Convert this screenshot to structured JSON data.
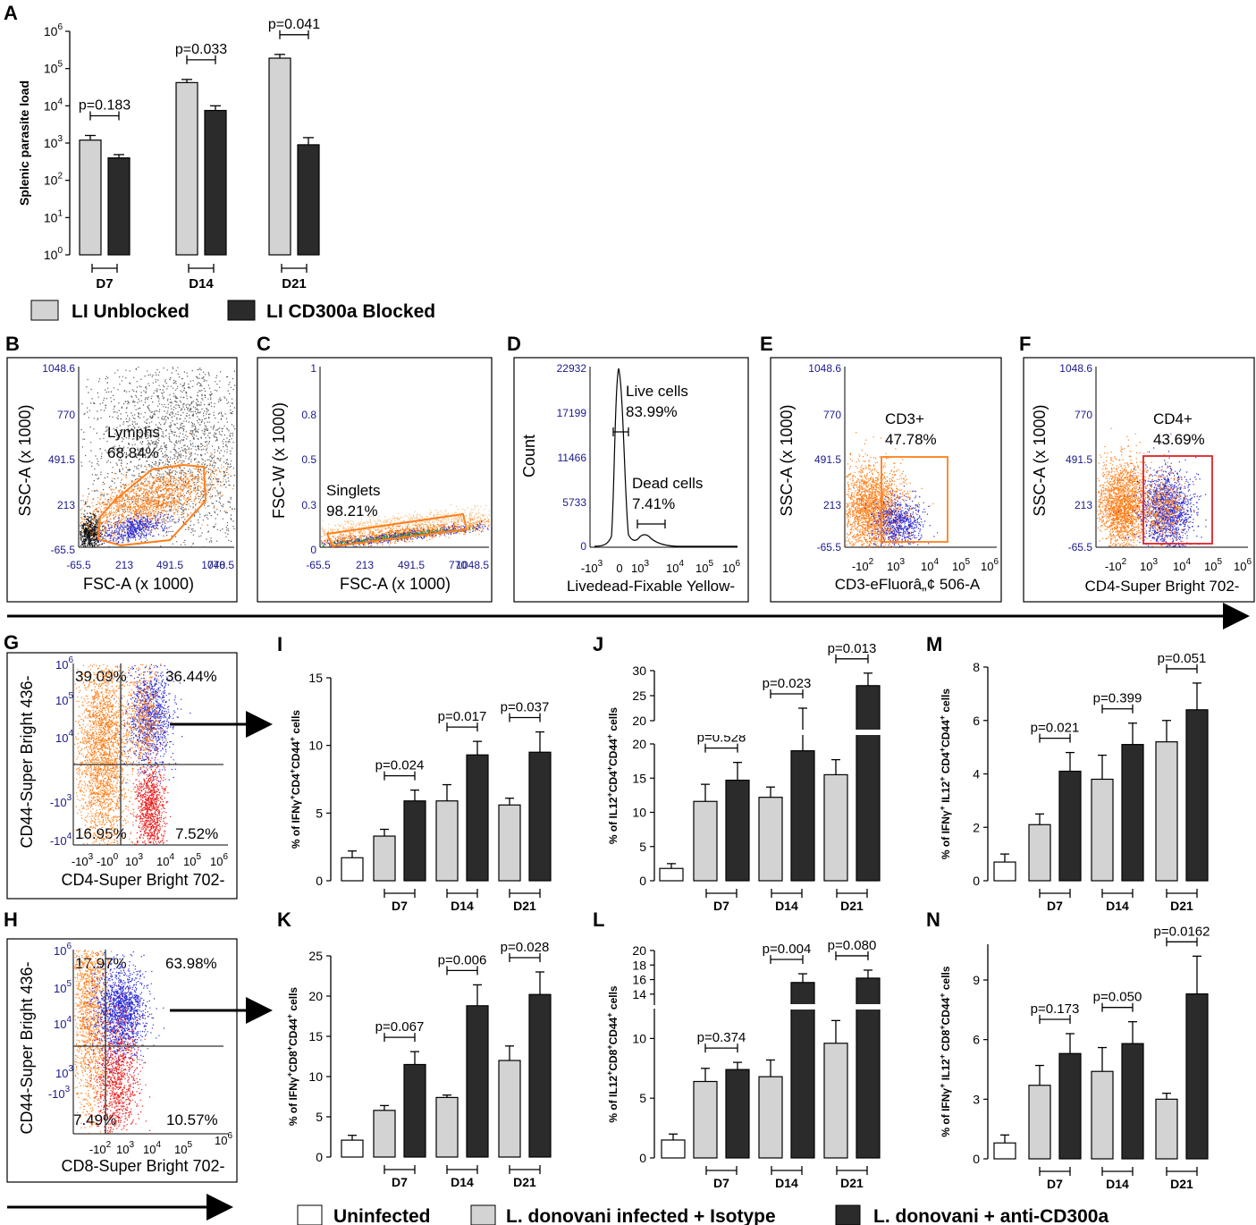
{
  "colors": {
    "unblocked": "#d3d3d3",
    "blocked": "#2b2b2b",
    "uninfected": "#ffffff",
    "flow_orange": "#ff7f1a",
    "flow_blue": "#2a2ad8",
    "flow_red": "#ee1c1c",
    "axis_blue": "#1a1a8c",
    "gate_red": "#e0202a"
  },
  "panel_letters": [
    "A",
    "B",
    "C",
    "D",
    "E",
    "F",
    "G",
    "H",
    "I",
    "J",
    "K",
    "L",
    "M",
    "N"
  ],
  "legend_top": {
    "unblocked": "LI Unblocked",
    "blocked": "LI CD300a Blocked"
  },
  "legend_bottom": {
    "uninfected": "Uninfected",
    "isotype": "L. donovani infected + Isotype",
    "anti": "L. donovani + anti-CD300a"
  },
  "flow_panels": {
    "B": {
      "xlabel": "FSC-A (x 1000)",
      "ylabel": "SSC-A (x 1000)",
      "xticks": [
        "-65.5",
        "213",
        "491.5",
        "770",
        "1048.5"
      ],
      "yticks": [
        "1048.6",
        "770",
        "491.5",
        "213",
        "-65.5"
      ],
      "gate_name": "Lymphs",
      "gate_pct": "68.84%"
    },
    "C": {
      "xlabel": "FSC-A (x 1000)",
      "ylabel": "FSC-W (x 1000)",
      "xticks": [
        "-65.5",
        "213",
        "491.5",
        "770",
        "1048.5"
      ],
      "yticks": [
        "1",
        "0.8",
        "0.5",
        "0.3",
        "0"
      ],
      "gate_name": "Singlets",
      "gate_pct": "98.21%"
    },
    "D": {
      "xlabel": "Livedead-Fixable Yellow-",
      "ylabel": "Count",
      "yticks": [
        "22932",
        "17199",
        "11466",
        "5733",
        "0"
      ],
      "live_name": "Live cells",
      "live_pct": "83.99%",
      "dead_name": "Dead cells",
      "dead_pct": "7.41%"
    },
    "E": {
      "xlabel": "CD3-eFluorâ„¢ 506-A",
      "ylabel": "SSC-A (x 1000)",
      "yticks": [
        "1048.6",
        "770",
        "491.5",
        "213",
        "-65.5"
      ],
      "gate_name": "CD3+",
      "gate_pct": "47.78%"
    },
    "F": {
      "xlabel": "CD4-Super Bright 702-",
      "ylabel": "SSC-A (x 1000)",
      "yticks": [
        "1048.6",
        "770",
        "491.5",
        "213",
        "-65.5"
      ],
      "gate_name": "CD4+",
      "gate_pct": "43.69%"
    },
    "G": {
      "xlabel": "CD4-Super Bright 702-",
      "ylabel": "CD44-Super Bright 436-",
      "q_ul": "39.09%",
      "q_ur": "36.44%",
      "q_ll": "16.95%",
      "q_lr": "7.52%"
    },
    "H": {
      "xlabel": "CD8-Super Bright 702-",
      "ylabel": "CD44-Super Bright 436-",
      "q_ul": "17.97%",
      "q_ur": "63.98%",
      "q_ll": "7.49%",
      "q_lr": "10.57%"
    }
  },
  "chart_data": [
    {
      "panel": "A",
      "type": "bar",
      "log_scale": true,
      "ylim": [
        1,
        1000000
      ],
      "ylabel": "Splenic parasite load",
      "yticks": [
        "10",
        "10",
        "10",
        "10",
        "10",
        "10",
        "10"
      ],
      "ytick_exps": [
        "0",
        "1",
        "2",
        "3",
        "4",
        "5",
        "6"
      ],
      "groups": [
        "D7",
        "D14",
        "D21"
      ],
      "series": [
        {
          "name": "LI Unblocked",
          "values": [
            1200,
            42000,
            190000
          ],
          "errors": [
            400,
            9000,
            50000
          ]
        },
        {
          "name": "LI CD300a Blocked",
          "values": [
            400,
            7500,
            900
          ],
          "errors": [
            90,
            2500,
            500
          ]
        }
      ],
      "pvalues": [
        "p=0.183",
        "p=0.033",
        "p=0.041"
      ]
    },
    {
      "panel": "I",
      "type": "bar",
      "ylim": [
        0,
        15
      ],
      "yticks": [
        "0",
        "5",
        "10",
        "15"
      ],
      "groups": [
        "D7",
        "D14",
        "D21"
      ],
      "uninfected": {
        "value": 1.7,
        "error": 0.5
      },
      "series": [
        {
          "name": "L. donovani infected + Isotype",
          "values": [
            3.3,
            5.9,
            5.6
          ],
          "errors": [
            0.5,
            1.2,
            0.5
          ]
        },
        {
          "name": "L. donovani + anti-CD300a",
          "values": [
            5.9,
            9.3,
            9.5
          ],
          "errors": [
            0.8,
            1.0,
            1.5
          ]
        }
      ],
      "pvalues": [
        "p=0.024",
        "p=0.017",
        "p=0.037"
      ]
    },
    {
      "panel": "J",
      "type": "bar",
      "broken_axis": true,
      "lower_ylim": [
        0,
        20
      ],
      "upper_ylim": [
        20,
        30
      ],
      "lower_ticks": [
        "0",
        "5",
        "10",
        "15",
        "20"
      ],
      "upper_ticks": [
        "20",
        "25",
        "30"
      ],
      "groups": [
        "D7",
        "D14",
        "D21"
      ],
      "uninfected": {
        "value": 1.8,
        "error": 0.7
      },
      "series": [
        {
          "name": "L. donovani infected + Isotype",
          "values": [
            11.6,
            12.2,
            15.5
          ],
          "errors": [
            2.5,
            1.5,
            2.2
          ]
        },
        {
          "name": "L. donovani + anti-CD300a",
          "values": [
            14.7,
            19.0,
            27.0
          ],
          "errors": [
            2.6,
            3.5,
            2.5
          ]
        }
      ],
      "pvalues": [
        "p=0.528",
        "p=0.023",
        "p=0.013"
      ]
    },
    {
      "panel": "M",
      "type": "bar",
      "ylim": [
        0,
        8
      ],
      "yticks": [
        "0",
        "2",
        "4",
        "6",
        "8"
      ],
      "groups": [
        "D7",
        "D14",
        "D21"
      ],
      "uninfected": {
        "value": 0.7,
        "error": 0.3
      },
      "series": [
        {
          "name": "L. donovani infected + Isotype",
          "values": [
            2.1,
            3.8,
            5.2
          ],
          "errors": [
            0.4,
            0.9,
            0.8
          ]
        },
        {
          "name": "L. donovani + anti-CD300a",
          "values": [
            4.1,
            5.1,
            6.4
          ],
          "errors": [
            0.7,
            0.8,
            1.0
          ]
        }
      ],
      "pvalues": [
        "p=0.021",
        "p=0.399",
        "p=0.051"
      ]
    },
    {
      "panel": "K",
      "type": "bar",
      "ylim": [
        0,
        25
      ],
      "yticks": [
        "0",
        "5",
        "10",
        "15",
        "20",
        "25"
      ],
      "groups": [
        "D7",
        "D14",
        "D21"
      ],
      "uninfected": {
        "value": 2.1,
        "error": 0.6
      },
      "series": [
        {
          "name": "L. donovani infected + Isotype",
          "values": [
            5.8,
            7.4,
            12.0
          ],
          "errors": [
            0.6,
            0.3,
            1.8
          ]
        },
        {
          "name": "L. donovani + anti-CD300a",
          "values": [
            11.5,
            18.8,
            20.2
          ],
          "errors": [
            1.6,
            2.6,
            2.8
          ]
        }
      ],
      "pvalues": [
        "p=0.067",
        "p=0.006",
        "p=0.028"
      ]
    },
    {
      "panel": "L",
      "type": "bar",
      "broken_axis": true,
      "lower_ylim": [
        0,
        12.5
      ],
      "upper_ylim": [
        12.5,
        20
      ],
      "lower_ticks": [
        "0",
        "5",
        "10"
      ],
      "upper_ticks": [
        "14",
        "16",
        "18",
        "20"
      ],
      "groups": [
        "D7",
        "D14",
        "D21"
      ],
      "uninfected": {
        "value": 1.5,
        "error": 0.5
      },
      "series": [
        {
          "name": "L. donovani infected + Isotype",
          "values": [
            6.4,
            6.8,
            9.6
          ],
          "errors": [
            1.1,
            1.4,
            1.9
          ]
        },
        {
          "name": "L. donovani + anti-CD300a",
          "values": [
            7.4,
            15.6,
            16.2
          ],
          "errors": [
            0.6,
            1.2,
            1.1
          ]
        }
      ],
      "pvalues": [
        "p=0.374",
        "p=0.004",
        "p=0.080"
      ]
    },
    {
      "panel": "N",
      "type": "bar",
      "ylim": [
        0,
        10.8
      ],
      "yticks": [
        "0",
        "3",
        "6",
        "9"
      ],
      "groups": [
        "D7",
        "D14",
        "D21"
      ],
      "uninfected": {
        "value": 0.8,
        "error": 0.4
      },
      "series": [
        {
          "name": "L. donovani infected + Isotype",
          "values": [
            3.7,
            4.4,
            3.0
          ],
          "errors": [
            1.0,
            1.2,
            0.3
          ]
        },
        {
          "name": "L. donovani + anti-CD300a",
          "values": [
            5.3,
            5.8,
            8.3
          ],
          "errors": [
            1.0,
            1.1,
            1.9
          ]
        }
      ],
      "pvalues": [
        "p=0.173",
        "p=0.050",
        "p=0.0162"
      ]
    }
  ],
  "ylabels": {
    "I": [
      "% of IFN",
      "γ",
      "+",
      "CD4",
      "+",
      "CD44",
      "+",
      " cells"
    ],
    "J": [
      "% of IL12",
      "+",
      "CD4",
      "+",
      "CD44",
      "+",
      " cells"
    ],
    "M": [
      "% of IFN",
      "γ",
      "+",
      " IL12",
      "+",
      " CD4",
      "+",
      "CD44",
      "+",
      " cells"
    ],
    "K": [
      "% of IFN",
      "γ",
      "+",
      "CD8",
      "+",
      "CD44",
      "+",
      " cells"
    ],
    "L": [
      "% of IL12",
      "+",
      "CD8",
      "+",
      "CD44",
      "+",
      " cells"
    ],
    "N": [
      "% of IFN",
      "γ",
      "+",
      " IL12",
      "+",
      " CD8",
      "+",
      "CD44",
      "+",
      " cells"
    ]
  }
}
